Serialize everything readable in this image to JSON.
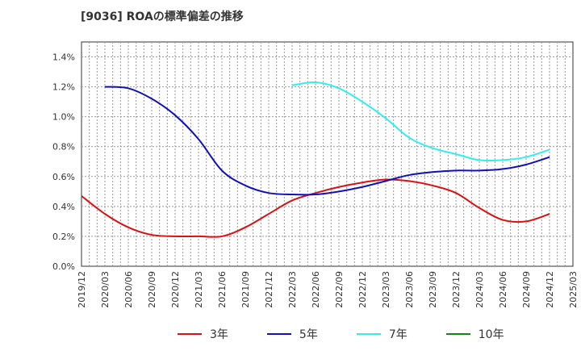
{
  "chart_data": {
    "type": "line",
    "title": "[9036]  ROAの標準偏差の推移",
    "y_ticks": [
      "0.0%",
      "0.2%",
      "0.4%",
      "0.6%",
      "0.8%",
      "1.0%",
      "1.2%",
      "1.4%"
    ],
    "ylim": [
      0,
      1.5
    ],
    "x_ticks": [
      "2019/12",
      "2020/03",
      "2020/06",
      "2020/09",
      "2020/12",
      "2021/03",
      "2021/06",
      "2021/09",
      "2021/12",
      "2022/03",
      "2022/06",
      "2022/09",
      "2022/12",
      "2023/03",
      "2023/06",
      "2023/09",
      "2023/12",
      "2024/03",
      "2024/06",
      "2024/09",
      "2024/12",
      "2025/03"
    ],
    "grid": true,
    "legend_position": "bottom",
    "series": [
      {
        "name": "3年",
        "color": "#dd1111",
        "values": [
          0.47,
          0.35,
          0.26,
          0.21,
          0.2,
          0.2,
          0.2,
          0.26,
          0.35,
          0.44,
          0.49,
          0.53,
          0.56,
          0.58,
          0.57,
          0.54,
          0.49,
          0.39,
          0.31,
          0.3,
          0.35,
          null
        ]
      },
      {
        "name": "5年",
        "color": "#1111bb",
        "values": [
          null,
          1.2,
          1.19,
          1.12,
          1.01,
          0.85,
          0.64,
          0.54,
          0.49,
          0.48,
          0.48,
          0.5,
          0.53,
          0.57,
          0.61,
          0.63,
          0.64,
          0.64,
          0.65,
          0.68,
          0.73,
          null
        ]
      },
      {
        "name": "7年",
        "color": "#33eeee",
        "values": [
          null,
          null,
          null,
          null,
          null,
          null,
          null,
          null,
          null,
          1.21,
          1.23,
          1.19,
          1.1,
          0.99,
          0.86,
          0.79,
          0.75,
          0.71,
          0.71,
          0.73,
          0.78,
          null
        ]
      },
      {
        "name": "10年",
        "color": "#118811",
        "values": [
          null,
          null,
          null,
          null,
          null,
          null,
          null,
          null,
          null,
          null,
          null,
          null,
          null,
          null,
          null,
          null,
          null,
          null,
          null,
          null,
          null,
          null
        ]
      }
    ]
  }
}
